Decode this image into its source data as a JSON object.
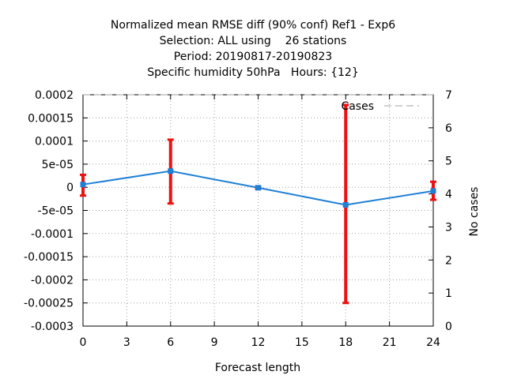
{
  "chart_data": {
    "type": "line",
    "title_lines": [
      "Normalized mean RMSE diff (90% conf) Ref1 - Exp6",
      "Selection: ALL using    26 stations",
      "Period: 20190817-20190823",
      "Specific humidity 50hPa   Hours: {12}"
    ],
    "xlabel": "Forecast length",
    "ylabel": "",
    "y2label": "No cases",
    "xlim": [
      0,
      24
    ],
    "ylim": [
      -0.0003,
      0.0002
    ],
    "y2lim": [
      0,
      7
    ],
    "x_ticks": [
      "0",
      "3",
      "6",
      "9",
      "12",
      "15",
      "18",
      "21",
      "24"
    ],
    "y_ticks": [
      "0.0002",
      "0.00015",
      "0.0001",
      "5e-05",
      "0",
      "-5e-05",
      "-0.0001",
      "-0.00015",
      "-0.0002",
      "-0.00025",
      "-0.0003"
    ],
    "y2_ticks": [
      "0",
      "1",
      "2",
      "3",
      "4",
      "5",
      "6",
      "7"
    ],
    "grid": true,
    "legend_position": "top-right",
    "series": [
      {
        "name": "Cases",
        "axis": "y2",
        "style": "dashed",
        "color": "#a0a0a0",
        "x": [
          0,
          6,
          12,
          18,
          24
        ],
        "values": [
          7,
          7,
          7,
          7,
          7
        ]
      },
      {
        "name": "",
        "axis": "y",
        "style": "solid",
        "color": "#1f7fd6",
        "x": [
          0,
          6,
          12,
          18,
          24
        ],
        "values": [
          6e-06,
          3.5e-05,
          -1e-06,
          -3.8e-05,
          -8e-06
        ],
        "error_low": [
          -1.8e-05,
          -3.5e-05,
          -3e-06,
          -0.00025,
          -2.7e-05
        ],
        "error_high": [
          2.7e-05,
          0.000103,
          1e-06,
          0.000178,
          1.2e-05
        ],
        "error_color": "#ee1111"
      }
    ]
  }
}
